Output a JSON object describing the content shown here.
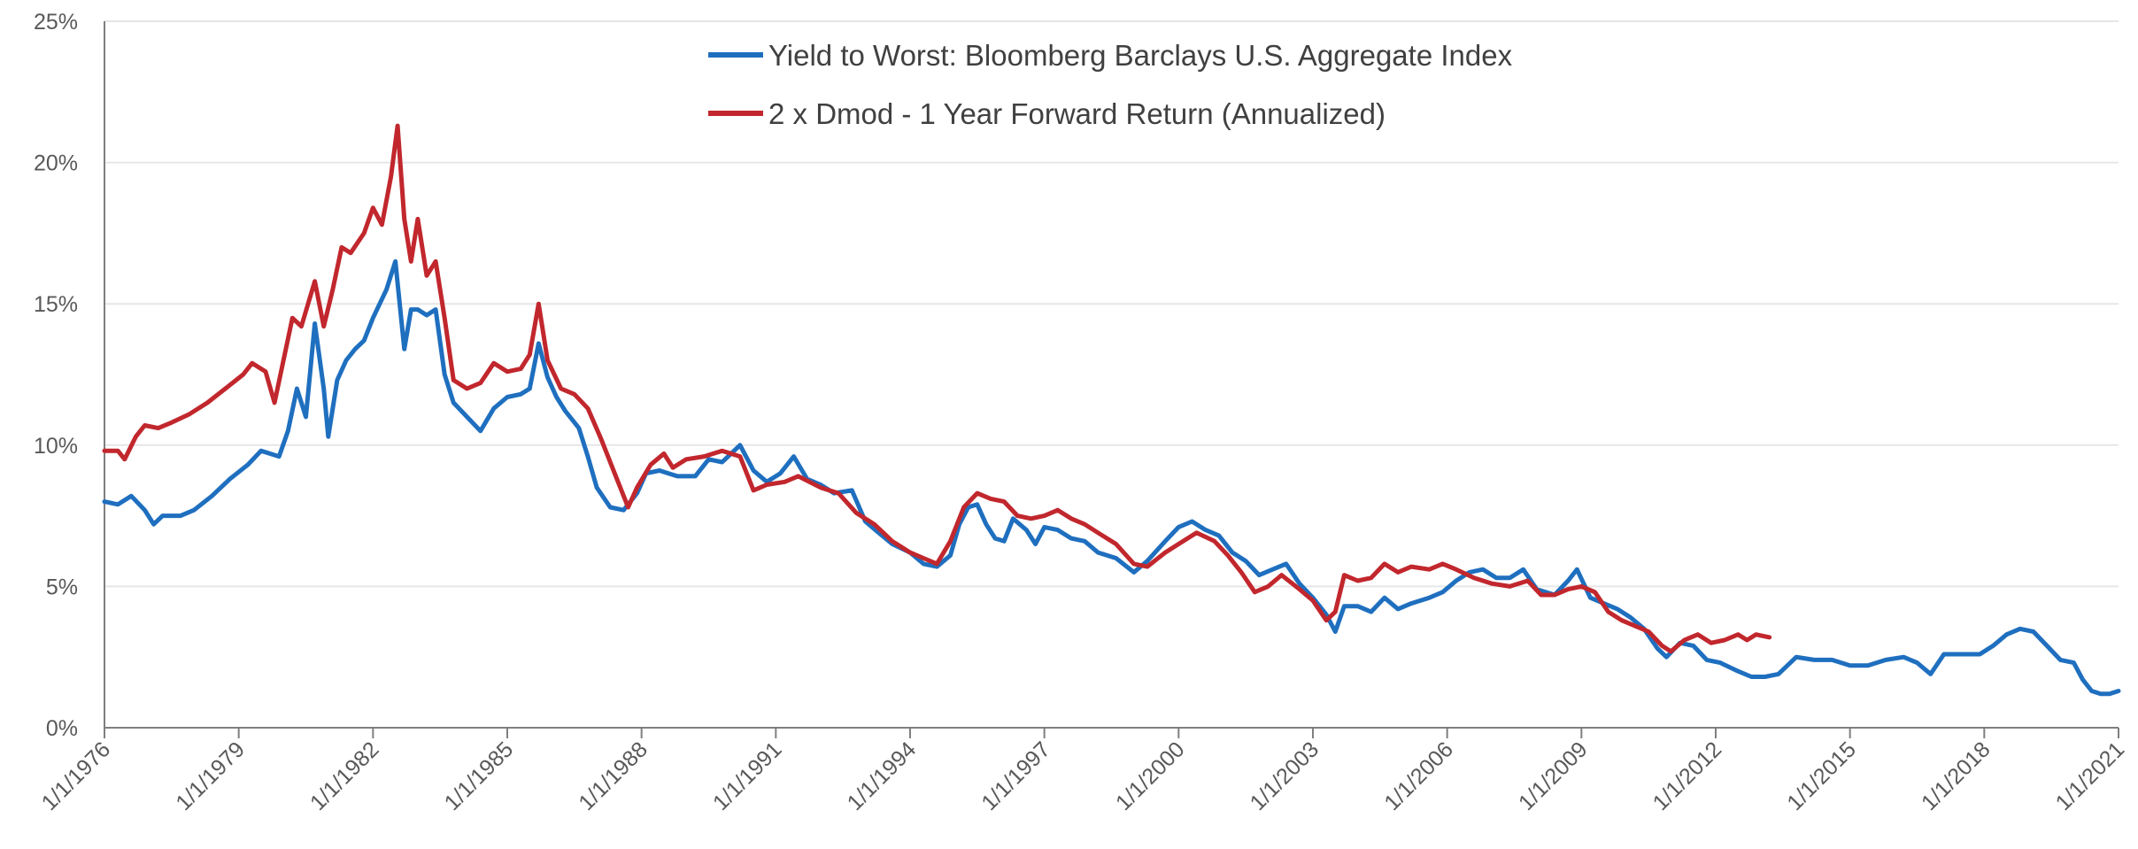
{
  "chart_data": {
    "type": "line",
    "title": "",
    "xlabel": "",
    "ylabel": "",
    "ylim": [
      0,
      25
    ],
    "y_ticks": [
      "0%",
      "5%",
      "10%",
      "15%",
      "20%",
      "25%"
    ],
    "x_ticks": [
      "1/1/1976",
      "1/1/1979",
      "1/1/1982",
      "1/1/1985",
      "1/1/1988",
      "1/1/1991",
      "1/1/1994",
      "1/1/1997",
      "1/1/2000",
      "1/1/2003",
      "1/1/2006",
      "1/1/2009",
      "1/1/2012",
      "1/1/2015",
      "1/1/2018",
      "1/1/2021"
    ],
    "xlim": [
      1976,
      2021
    ],
    "grid": "horizontal",
    "legend_position": "top-center",
    "series": [
      {
        "name": "Yield to Worst: Bloomberg Barclays U.S. Aggregate Index",
        "color": "#1F6FBF",
        "points": [
          [
            1976.0,
            8.0
          ],
          [
            1976.3,
            7.9
          ],
          [
            1976.6,
            8.2
          ],
          [
            1976.9,
            7.7
          ],
          [
            1977.1,
            7.2
          ],
          [
            1977.3,
            7.5
          ],
          [
            1977.7,
            7.5
          ],
          [
            1978.0,
            7.7
          ],
          [
            1978.4,
            8.2
          ],
          [
            1978.8,
            8.8
          ],
          [
            1979.2,
            9.3
          ],
          [
            1979.5,
            9.8
          ],
          [
            1979.9,
            9.6
          ],
          [
            1980.1,
            10.5
          ],
          [
            1980.3,
            12.0
          ],
          [
            1980.5,
            11.0
          ],
          [
            1980.7,
            14.3
          ],
          [
            1980.9,
            12.0
          ],
          [
            1981.0,
            10.3
          ],
          [
            1981.2,
            12.3
          ],
          [
            1981.4,
            13.0
          ],
          [
            1981.6,
            13.4
          ],
          [
            1981.8,
            13.7
          ],
          [
            1982.0,
            14.5
          ],
          [
            1982.3,
            15.5
          ],
          [
            1982.5,
            16.5
          ],
          [
            1982.7,
            13.4
          ],
          [
            1982.85,
            14.8
          ],
          [
            1983.0,
            14.8
          ],
          [
            1983.2,
            14.6
          ],
          [
            1983.4,
            14.8
          ],
          [
            1983.6,
            12.5
          ],
          [
            1983.8,
            11.5
          ],
          [
            1984.1,
            11.0
          ],
          [
            1984.4,
            10.5
          ],
          [
            1984.7,
            11.3
          ],
          [
            1985.0,
            11.7
          ],
          [
            1985.3,
            11.8
          ],
          [
            1985.5,
            12.0
          ],
          [
            1985.7,
            13.6
          ],
          [
            1985.9,
            12.4
          ],
          [
            1986.1,
            11.7
          ],
          [
            1986.3,
            11.2
          ],
          [
            1986.6,
            10.6
          ],
          [
            1986.8,
            9.6
          ],
          [
            1987.0,
            8.5
          ],
          [
            1987.3,
            7.8
          ],
          [
            1987.6,
            7.7
          ],
          [
            1987.9,
            8.3
          ],
          [
            1988.1,
            9.0
          ],
          [
            1988.4,
            9.1
          ],
          [
            1988.8,
            8.9
          ],
          [
            1989.2,
            8.9
          ],
          [
            1989.5,
            9.5
          ],
          [
            1989.8,
            9.4
          ],
          [
            1990.2,
            10.0
          ],
          [
            1990.5,
            9.1
          ],
          [
            1990.8,
            8.7
          ],
          [
            1991.1,
            9.0
          ],
          [
            1991.4,
            9.6
          ],
          [
            1991.7,
            8.8
          ],
          [
            1992.0,
            8.6
          ],
          [
            1992.3,
            8.3
          ],
          [
            1992.7,
            8.4
          ],
          [
            1993.0,
            7.3
          ],
          [
            1993.3,
            6.9
          ],
          [
            1993.6,
            6.5
          ],
          [
            1994.0,
            6.2
          ],
          [
            1994.3,
            5.8
          ],
          [
            1994.6,
            5.7
          ],
          [
            1994.9,
            6.1
          ],
          [
            1995.1,
            7.2
          ],
          [
            1995.3,
            7.8
          ],
          [
            1995.5,
            7.9
          ],
          [
            1995.7,
            7.2
          ],
          [
            1995.9,
            6.7
          ],
          [
            1996.1,
            6.6
          ],
          [
            1996.3,
            7.4
          ],
          [
            1996.6,
            7.0
          ],
          [
            1996.8,
            6.5
          ],
          [
            1997.0,
            7.1
          ],
          [
            1997.3,
            7.0
          ],
          [
            1997.6,
            6.7
          ],
          [
            1997.9,
            6.6
          ],
          [
            1998.2,
            6.2
          ],
          [
            1998.6,
            6.0
          ],
          [
            1999.0,
            5.5
          ],
          [
            1999.3,
            5.9
          ],
          [
            1999.7,
            6.6
          ],
          [
            2000.0,
            7.1
          ],
          [
            2000.3,
            7.3
          ],
          [
            2000.6,
            7.0
          ],
          [
            2000.9,
            6.8
          ],
          [
            2001.2,
            6.2
          ],
          [
            2001.5,
            5.9
          ],
          [
            2001.8,
            5.4
          ],
          [
            2002.1,
            5.6
          ],
          [
            2002.4,
            5.8
          ],
          [
            2002.7,
            5.1
          ],
          [
            2003.0,
            4.6
          ],
          [
            2003.3,
            4.0
          ],
          [
            2003.5,
            3.4
          ],
          [
            2003.7,
            4.3
          ],
          [
            2004.0,
            4.3
          ],
          [
            2004.3,
            4.1
          ],
          [
            2004.6,
            4.6
          ],
          [
            2004.9,
            4.2
          ],
          [
            2005.2,
            4.4
          ],
          [
            2005.6,
            4.6
          ],
          [
            2005.9,
            4.8
          ],
          [
            2006.2,
            5.2
          ],
          [
            2006.5,
            5.5
          ],
          [
            2006.8,
            5.6
          ],
          [
            2007.1,
            5.3
          ],
          [
            2007.4,
            5.3
          ],
          [
            2007.7,
            5.6
          ],
          [
            2008.0,
            4.9
          ],
          [
            2008.4,
            4.7
          ],
          [
            2008.7,
            5.2
          ],
          [
            2008.9,
            5.6
          ],
          [
            2009.2,
            4.6
          ],
          [
            2009.5,
            4.4
          ],
          [
            2009.8,
            4.2
          ],
          [
            2010.1,
            3.9
          ],
          [
            2010.4,
            3.5
          ],
          [
            2010.7,
            2.8
          ],
          [
            2010.9,
            2.5
          ],
          [
            2011.2,
            3.0
          ],
          [
            2011.5,
            2.9
          ],
          [
            2011.8,
            2.4
          ],
          [
            2012.1,
            2.3
          ],
          [
            2012.5,
            2.0
          ],
          [
            2012.8,
            1.8
          ],
          [
            2013.1,
            1.8
          ],
          [
            2013.4,
            1.9
          ],
          [
            2013.8,
            2.5
          ],
          [
            2014.2,
            2.4
          ],
          [
            2014.6,
            2.4
          ],
          [
            2015.0,
            2.2
          ],
          [
            2015.4,
            2.2
          ],
          [
            2015.8,
            2.4
          ],
          [
            2016.2,
            2.5
          ],
          [
            2016.5,
            2.3
          ],
          [
            2016.8,
            1.9
          ],
          [
            2017.1,
            2.6
          ],
          [
            2017.5,
            2.6
          ],
          [
            2017.9,
            2.6
          ],
          [
            2018.2,
            2.9
          ],
          [
            2018.5,
            3.3
          ],
          [
            2018.8,
            3.5
          ],
          [
            2019.1,
            3.4
          ],
          [
            2019.4,
            2.9
          ],
          [
            2019.7,
            2.4
          ],
          [
            2020.0,
            2.3
          ],
          [
            2020.2,
            1.7
          ],
          [
            2020.4,
            1.3
          ],
          [
            2020.6,
            1.2
          ],
          [
            2020.8,
            1.2
          ],
          [
            2021.0,
            1.3
          ]
        ]
      },
      {
        "name": "2 x Dmod - 1 Year Forward Return (Annualized)",
        "color": "#C1272D",
        "points": [
          [
            1976.0,
            9.8
          ],
          [
            1976.3,
            9.8
          ],
          [
            1976.45,
            9.5
          ],
          [
            1976.7,
            10.3
          ],
          [
            1976.9,
            10.7
          ],
          [
            1977.2,
            10.6
          ],
          [
            1977.5,
            10.8
          ],
          [
            1977.9,
            11.1
          ],
          [
            1978.3,
            11.5
          ],
          [
            1978.7,
            12.0
          ],
          [
            1979.1,
            12.5
          ],
          [
            1979.3,
            12.9
          ],
          [
            1979.6,
            12.6
          ],
          [
            1979.8,
            11.5
          ],
          [
            1980.0,
            13.0
          ],
          [
            1980.2,
            14.5
          ],
          [
            1980.4,
            14.2
          ],
          [
            1980.7,
            15.8
          ],
          [
            1980.9,
            14.2
          ],
          [
            1981.1,
            15.5
          ],
          [
            1981.3,
            17.0
          ],
          [
            1981.5,
            16.8
          ],
          [
            1981.8,
            17.5
          ],
          [
            1982.0,
            18.4
          ],
          [
            1982.2,
            17.8
          ],
          [
            1982.4,
            19.5
          ],
          [
            1982.55,
            21.3
          ],
          [
            1982.7,
            18.0
          ],
          [
            1982.85,
            16.5
          ],
          [
            1983.0,
            18.0
          ],
          [
            1983.2,
            16.0
          ],
          [
            1983.4,
            16.5
          ],
          [
            1983.6,
            14.5
          ],
          [
            1983.8,
            12.3
          ],
          [
            1984.1,
            12.0
          ],
          [
            1984.4,
            12.2
          ],
          [
            1984.7,
            12.9
          ],
          [
            1985.0,
            12.6
          ],
          [
            1985.3,
            12.7
          ],
          [
            1985.5,
            13.2
          ],
          [
            1985.7,
            15.0
          ],
          [
            1985.9,
            13.0
          ],
          [
            1986.2,
            12.0
          ],
          [
            1986.5,
            11.8
          ],
          [
            1986.8,
            11.3
          ],
          [
            1987.1,
            10.2
          ],
          [
            1987.4,
            9.0
          ],
          [
            1987.7,
            7.8
          ],
          [
            1987.9,
            8.5
          ],
          [
            1988.2,
            9.3
          ],
          [
            1988.5,
            9.7
          ],
          [
            1988.7,
            9.2
          ],
          [
            1989.0,
            9.5
          ],
          [
            1989.4,
            9.6
          ],
          [
            1989.8,
            9.8
          ],
          [
            1990.2,
            9.6
          ],
          [
            1990.5,
            8.4
          ],
          [
            1990.8,
            8.6
          ],
          [
            1991.2,
            8.7
          ],
          [
            1991.5,
            8.9
          ],
          [
            1992.0,
            8.5
          ],
          [
            1992.4,
            8.3
          ],
          [
            1992.8,
            7.6
          ],
          [
            1993.2,
            7.2
          ],
          [
            1993.6,
            6.6
          ],
          [
            1994.0,
            6.2
          ],
          [
            1994.3,
            6.0
          ],
          [
            1994.6,
            5.8
          ],
          [
            1994.9,
            6.6
          ],
          [
            1995.2,
            7.8
          ],
          [
            1995.5,
            8.3
          ],
          [
            1995.8,
            8.1
          ],
          [
            1996.1,
            8.0
          ],
          [
            1996.4,
            7.5
          ],
          [
            1996.7,
            7.4
          ],
          [
            1997.0,
            7.5
          ],
          [
            1997.3,
            7.7
          ],
          [
            1997.6,
            7.4
          ],
          [
            1997.9,
            7.2
          ],
          [
            1998.2,
            6.9
          ],
          [
            1998.6,
            6.5
          ],
          [
            1999.0,
            5.8
          ],
          [
            1999.3,
            5.7
          ],
          [
            1999.7,
            6.2
          ],
          [
            2000.0,
            6.5
          ],
          [
            2000.4,
            6.9
          ],
          [
            2000.8,
            6.6
          ],
          [
            2001.1,
            6.1
          ],
          [
            2001.4,
            5.5
          ],
          [
            2001.7,
            4.8
          ],
          [
            2002.0,
            5.0
          ],
          [
            2002.3,
            5.4
          ],
          [
            2002.7,
            4.9
          ],
          [
            2003.0,
            4.5
          ],
          [
            2003.3,
            3.8
          ],
          [
            2003.5,
            4.1
          ],
          [
            2003.7,
            5.4
          ],
          [
            2004.0,
            5.2
          ],
          [
            2004.3,
            5.3
          ],
          [
            2004.6,
            5.8
          ],
          [
            2004.9,
            5.5
          ],
          [
            2005.2,
            5.7
          ],
          [
            2005.6,
            5.6
          ],
          [
            2005.9,
            5.8
          ],
          [
            2006.2,
            5.6
          ],
          [
            2006.6,
            5.3
          ],
          [
            2007.0,
            5.1
          ],
          [
            2007.4,
            5.0
          ],
          [
            2007.8,
            5.2
          ],
          [
            2008.1,
            4.7
          ],
          [
            2008.4,
            4.7
          ],
          [
            2008.7,
            4.9
          ],
          [
            2009.0,
            5.0
          ],
          [
            2009.3,
            4.8
          ],
          [
            2009.6,
            4.1
          ],
          [
            2009.9,
            3.8
          ],
          [
            2010.2,
            3.6
          ],
          [
            2010.5,
            3.4
          ],
          [
            2010.8,
            2.9
          ],
          [
            2011.0,
            2.7
          ],
          [
            2011.3,
            3.1
          ],
          [
            2011.6,
            3.3
          ],
          [
            2011.9,
            3.0
          ],
          [
            2012.2,
            3.1
          ],
          [
            2012.5,
            3.3
          ],
          [
            2012.7,
            3.1
          ],
          [
            2012.9,
            3.3
          ],
          [
            2013.2,
            3.2
          ]
        ]
      }
    ]
  }
}
